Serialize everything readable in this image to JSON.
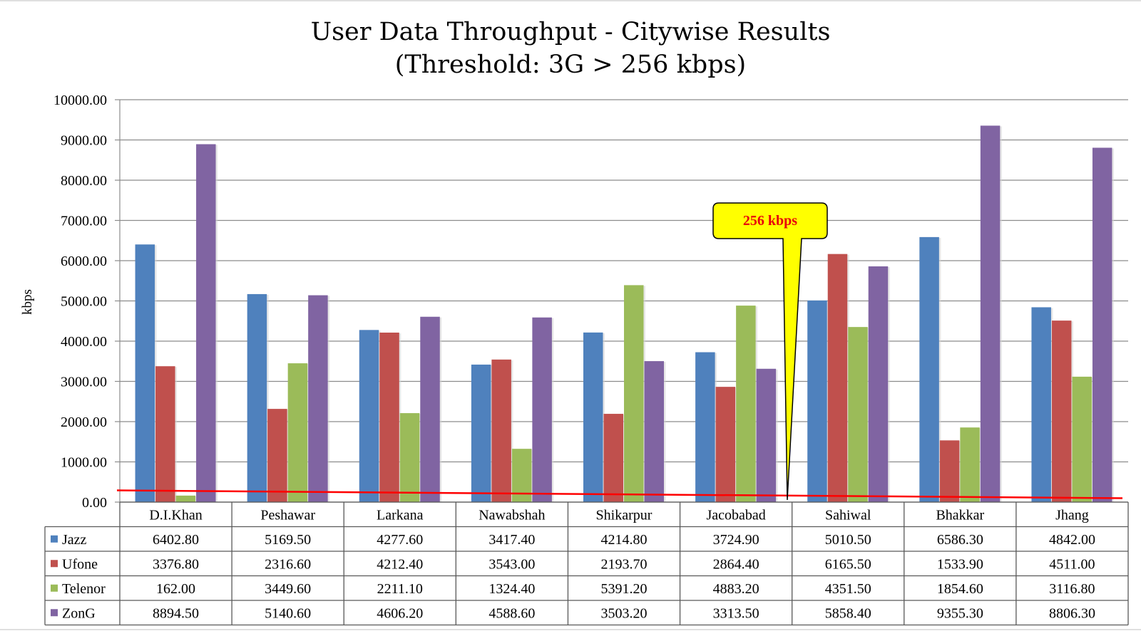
{
  "chart_data": {
    "type": "bar",
    "title": "User Data Throughput - Citywise Results",
    "subtitle": "(Threshold: 3G > 256 kbps)",
    "xlabel": "",
    "ylabel": "kbps",
    "ylim": [
      0,
      10000
    ],
    "yticks": [
      "0.00",
      "1000.00",
      "2000.00",
      "3000.00",
      "4000.00",
      "5000.00",
      "6000.00",
      "7000.00",
      "8000.00",
      "9000.00",
      "10000.00"
    ],
    "grid": true,
    "legend": "data-table-left",
    "categories": [
      "D.I.Khan",
      "Peshawar",
      "Larkana",
      "Nawabshah",
      "Shikarpur",
      "Jacobabad",
      "Sahiwal",
      "Bhakkar",
      "Jhang"
    ],
    "series": [
      {
        "name": "Jazz",
        "color": "#4f81bd",
        "values": [
          6402.8,
          5169.5,
          4277.6,
          3417.4,
          4214.8,
          3724.9,
          5010.5,
          6586.3,
          4842.0
        ],
        "labels": [
          "6402.80",
          "5169.50",
          "4277.60",
          "3417.40",
          "4214.80",
          "3724.90",
          "5010.50",
          "6586.30",
          "4842.00"
        ]
      },
      {
        "name": "Ufone",
        "color": "#c0504d",
        "values": [
          3376.8,
          2316.6,
          4212.4,
          3543.0,
          2193.7,
          2864.4,
          6165.5,
          1533.9,
          4511.0
        ],
        "labels": [
          "3376.80",
          "2316.60",
          "4212.40",
          "3543.00",
          "2193.70",
          "2864.40",
          "6165.50",
          "1533.90",
          "4511.00"
        ]
      },
      {
        "name": "Telenor",
        "color": "#9bbb59",
        "values": [
          162.0,
          3449.6,
          2211.1,
          1324.4,
          5391.2,
          4883.2,
          4351.5,
          1854.6,
          3116.8
        ],
        "labels": [
          "162.00",
          "3449.60",
          "2211.10",
          "1324.40",
          "5391.20",
          "4883.20",
          "4351.50",
          "1854.60",
          "3116.80"
        ]
      },
      {
        "name": "ZonG",
        "color": "#8064a2",
        "values": [
          8894.5,
          5140.6,
          4606.2,
          4588.6,
          3503.2,
          3313.5,
          5858.4,
          9355.3,
          8806.3
        ],
        "labels": [
          "8894.50",
          "5140.60",
          "4606.20",
          "4588.60",
          "3503.20",
          "3313.50",
          "5858.40",
          "9355.30",
          "8806.30"
        ]
      }
    ],
    "threshold": {
      "value": 256,
      "color": "#ff0000"
    },
    "annotation": {
      "text": "256 kbps",
      "fill": "#ffff00",
      "text_color": "#e8000b"
    }
  }
}
